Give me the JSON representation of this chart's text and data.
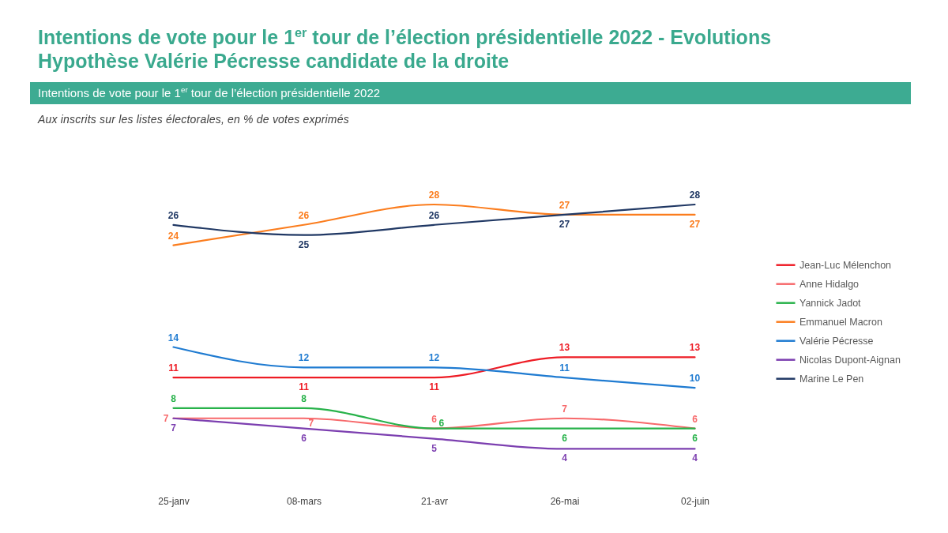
{
  "chart_data": {
    "type": "line",
    "title": "Intentions de vote pour le 1$^{er}$ tour de l’élection présidentielle 2022 - Evolutions\nHypothèse Valérie Pécresse candidate de la droite",
    "subtitle": "Intentions de vote pour le 1$^{er}$ tour de l’élection présidentielle 2022",
    "annotations": [
      "Aux inscrits sur les listes électorales, en % de votes exprimés"
    ],
    "categories": [
      "25-janv",
      "08-mars",
      "21-avr",
      "26-mai",
      "02-juin"
    ],
    "series": [
      {
        "name": "Jean-Luc Mélenchon",
        "color": "#ee1c25",
        "values": [
          11,
          11,
          11,
          13,
          13
        ]
      },
      {
        "name": "Anne Hidalgo",
        "color": "#f7696b",
        "values": [
          7,
          7,
          6,
          7,
          6
        ]
      },
      {
        "name": "Yannick Jadot",
        "color": "#27b24a",
        "values": [
          8,
          8,
          6,
          6,
          6
        ]
      },
      {
        "name": "Emmanuel Macron",
        "color": "#fb7d1e",
        "values": [
          24,
          26,
          28,
          27,
          27
        ]
      },
      {
        "name": "Valérie Pécresse",
        "color": "#1f7bd1",
        "values": [
          14,
          12,
          12,
          11,
          10
        ]
      },
      {
        "name": "Nicolas Dupont-Aignan",
        "color": "#7c3fb0",
        "values": [
          7,
          6,
          5,
          4,
          4
        ]
      },
      {
        "name": "Marine Le Pen",
        "color": "#203864",
        "values": [
          26,
          25,
          26,
          27,
          28
        ]
      }
    ],
    "tick_labels": "x",
    "legend": "right",
    "data_labels": true
  }
}
